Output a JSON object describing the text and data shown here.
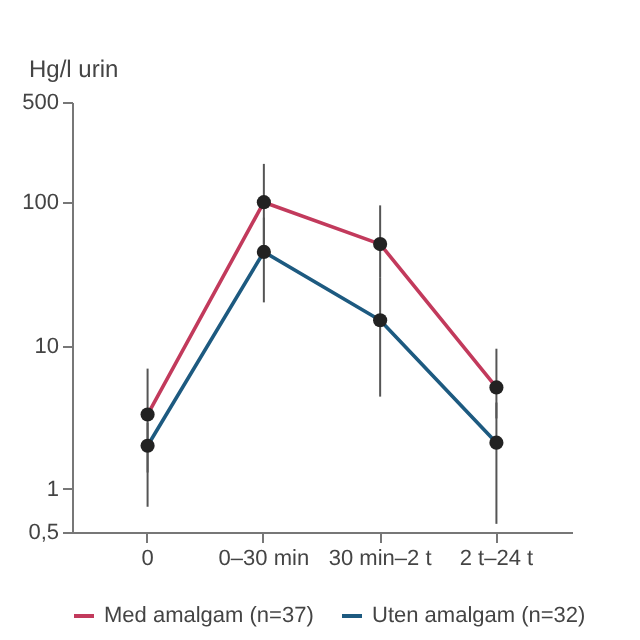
{
  "chart_data": {
    "type": "line",
    "ylabel": "Hg/l urin",
    "categories": [
      "0",
      "0–30 min",
      "30 min–2 t",
      "2 t–24 t"
    ],
    "series": [
      {
        "name": "Med amalgam (n=37)",
        "color": "#c23a5c",
        "values": [
          3.3,
          100,
          51,
          5.1
        ],
        "errors": [
          [
            1.3,
            6.9
          ],
          [
            51,
            185
          ],
          [
            30,
            95
          ],
          [
            3.1,
            9.5
          ]
        ]
      },
      {
        "name": "Uten amalgam (n=32)",
        "color": "#1d5a80",
        "values": [
          2.0,
          45,
          15,
          2.1
        ],
        "errors": [
          [
            0.75,
            2.9
          ],
          [
            20,
            78
          ],
          [
            4.4,
            30
          ],
          [
            0.57,
            4.0
          ]
        ]
      }
    ],
    "log": "y",
    "ylim": [
      0.5,
      500
    ],
    "yticks": [
      {
        "value": 0.5,
        "label": "0,5"
      },
      1,
      10,
      100,
      500
    ],
    "marker": "circle",
    "legend": "bottom",
    "grid": false
  }
}
